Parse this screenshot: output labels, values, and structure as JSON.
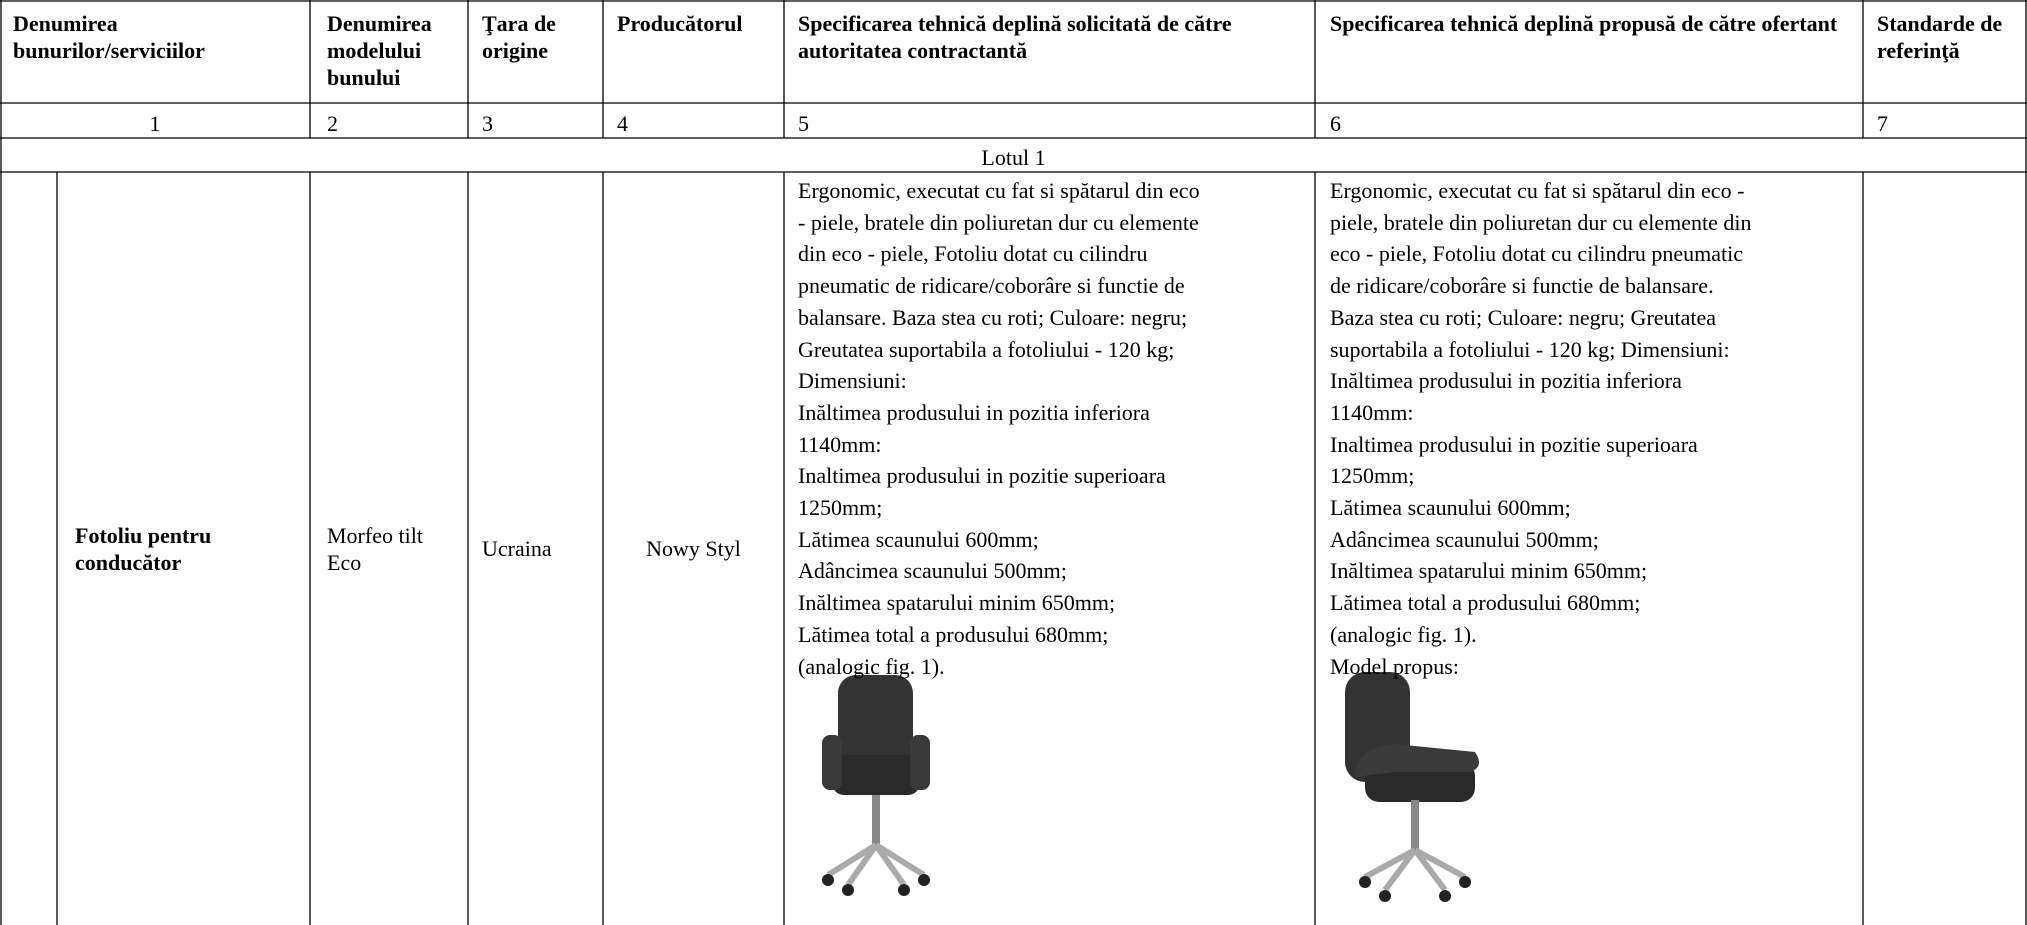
{
  "header": {
    "columns": [
      "Denumirea bunurilor/serviciilor",
      "Denumirea modelului bunului",
      "Ţara de origine",
      "Producătorul",
      "Specificarea tehnică deplină solicitată de către autoritatea contractantă",
      "Specificarea tehnică deplină propusă de către ofertant",
      "Standarde de referinţă"
    ]
  },
  "numbers": [
    "1",
    "2",
    "3",
    "4",
    "5",
    "6",
    "7"
  ],
  "lot": "Lotul 1",
  "row": {
    "name": "Fotoliu pentru conducător",
    "model": "Morfeo tilt Eco",
    "country": "Ucraina",
    "producer": "Nowy Styl",
    "spec_required": [
      "Ergonomic, executat cu fat si spătarul din eco",
      "- piele, bratele din poliuretan dur cu elemente",
      "din eco - piele, Fotoliu dotat cu cilindru",
      "pneumatic de ridicare/coborâre si functie de",
      "balansare. Baza stea cu roti; Culoare: negru;",
      "Greutatea suportabila a fotoliului - 120 kg;",
      "Dimensiuni:",
      "Inăltimea produsului in pozitia inferiora",
      "1140mm:",
      "Inaltimea produsului in pozitie superioara",
      "1250mm;",
      "Lătimea scaunului 600mm;",
      "Adâncimea scaunului 500mm;",
      "Inăltimea spatarului minim 650mm;",
      "Lătimea total a produsului 680mm;",
      "(analogic fig. 1)."
    ],
    "spec_offered": [
      "Ergonomic, executat cu fat si spătarul din eco -",
      "piele, bratele din poliuretan dur cu elemente din",
      "eco - piele, Fotoliu dotat cu cilindru pneumatic",
      "de ridicare/coborâre si functie de balansare.",
      "Baza stea cu roti; Culoare: negru; Greutatea",
      "suportabila a fotoliului - 120 kg; Dimensiuni:",
      "Inăltimea produsului in pozitia inferiora",
      "1140mm:",
      "Inaltimea produsului in pozitie superioara",
      "1250mm;",
      "Lătimea scaunului 600mm;",
      "Adâncimea scaunului 500mm;",
      "Inăltimea spatarului minim 650mm;",
      "Lătimea total a produsului 680mm;",
      "(analogic fig. 1).",
      "Model propus:"
    ]
  }
}
